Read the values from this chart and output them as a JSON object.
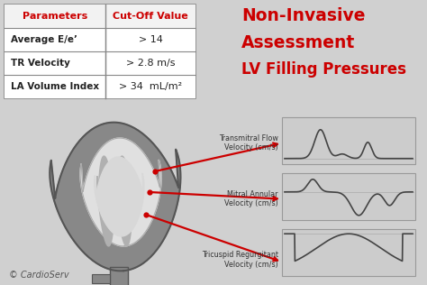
{
  "title_line1": "Non-Invasive",
  "title_line2": "Assessment",
  "title_line3": "LV Filling Pressures",
  "title_color": "#cc0000",
  "bg_color": "#d0d0d0",
  "table_header_color": "#cc0000",
  "table_bg": "#ffffff",
  "table_border": "#888888",
  "table_cols": [
    "Parameters",
    "Cut-Off Value"
  ],
  "table_rows": [
    [
      "Average E/e’",
      "> 14"
    ],
    [
      "TR Velocity",
      "> 2.8 m/s"
    ],
    [
      "LA Volume Index",
      "> 34  mL/m²"
    ]
  ],
  "waveform_labels": [
    "Transmitral Flow\nVelocity (cm/s)",
    "Mitral Annular\nVelocity (cm/s)",
    "Tricuspid Regurgitant\nVelocity (cm/s)"
  ],
  "arrow_color": "#cc0000",
  "waveform_box_color": "#cecece",
  "waveform_line_color": "#444444",
  "copyright": "© CardioServ",
  "copyright_color": "#555555",
  "heart_outer_color": "#888888",
  "heart_inner_light": "#e8e8e8",
  "heart_inner_dark": "#aaaaaa",
  "heart_border": "#555555"
}
